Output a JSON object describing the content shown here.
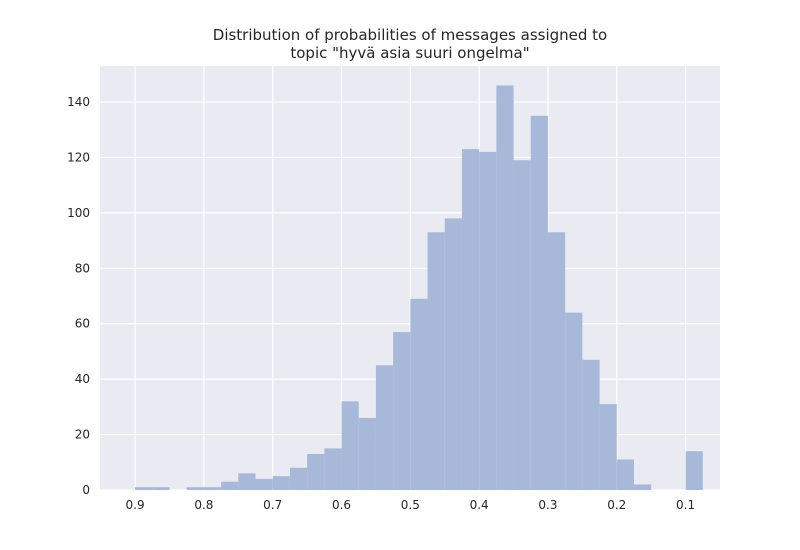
{
  "chart_data": {
    "type": "bar",
    "title": [
      "Distribution of probabilities of messages assigned to",
      "topic \"hyvä asia suuri ongelma\""
    ],
    "xlabel": "",
    "ylabel": "",
    "x_axis": "reversed",
    "xlim": [
      0.951,
      0.05
    ],
    "ylim": [
      0,
      153
    ],
    "xticks": [
      0.9,
      0.8,
      0.7,
      0.6,
      0.5,
      0.4,
      0.3,
      0.2,
      0.1
    ],
    "xtick_labels": [
      "0.9",
      "0.8",
      "0.7",
      "0.6",
      "0.5",
      "0.4",
      "0.3",
      "0.2",
      "0.1"
    ],
    "yticks": [
      0,
      20,
      40,
      60,
      80,
      100,
      120,
      140
    ],
    "ytick_labels": [
      "0",
      "20",
      "40",
      "60",
      "80",
      "100",
      "120",
      "140"
    ],
    "grid": true,
    "bar_color": "#a8b8d8",
    "background_color": "#eaeaf2",
    "grid_color": "#ffffff",
    "bin_width": 0.025,
    "bins": [
      {
        "start": 0.875,
        "count": 1
      },
      {
        "start": 0.85,
        "count": 1
      },
      {
        "start": 0.8,
        "count": 1
      },
      {
        "start": 0.775,
        "count": 1
      },
      {
        "start": 0.75,
        "count": 3
      },
      {
        "start": 0.725,
        "count": 6
      },
      {
        "start": 0.7,
        "count": 4
      },
      {
        "start": 0.675,
        "count": 5
      },
      {
        "start": 0.65,
        "count": 8
      },
      {
        "start": 0.625,
        "count": 13
      },
      {
        "start": 0.6,
        "count": 15
      },
      {
        "start": 0.575,
        "count": 32
      },
      {
        "start": 0.55,
        "count": 26
      },
      {
        "start": 0.525,
        "count": 45
      },
      {
        "start": 0.5,
        "count": 57
      },
      {
        "start": 0.475,
        "count": 69
      },
      {
        "start": 0.45,
        "count": 93
      },
      {
        "start": 0.425,
        "count": 98
      },
      {
        "start": 0.4,
        "count": 123
      },
      {
        "start": 0.375,
        "count": 122
      },
      {
        "start": 0.35,
        "count": 146
      },
      {
        "start": 0.325,
        "count": 119
      },
      {
        "start": 0.3,
        "count": 135
      },
      {
        "start": 0.275,
        "count": 93
      },
      {
        "start": 0.25,
        "count": 64
      },
      {
        "start": 0.225,
        "count": 47
      },
      {
        "start": 0.2,
        "count": 31
      },
      {
        "start": 0.175,
        "count": 11
      },
      {
        "start": 0.15,
        "count": 2
      },
      {
        "start": 0.075,
        "count": 14
      }
    ]
  }
}
